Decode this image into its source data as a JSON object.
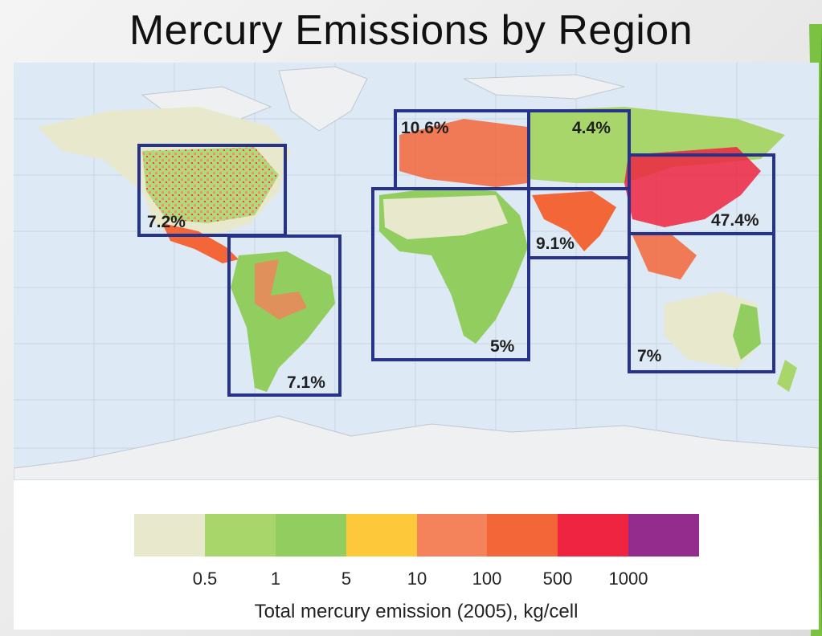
{
  "title": "Mercury Emissions by Region",
  "map": {
    "regions": [
      {
        "name": "north-america",
        "label": "7.2%"
      },
      {
        "name": "south-america",
        "label": "7.1%"
      },
      {
        "name": "europe",
        "label": "10.6%"
      },
      {
        "name": "russia-central-asia",
        "label": "4.4%"
      },
      {
        "name": "africa",
        "label": "5%"
      },
      {
        "name": "south-asia",
        "label": "9.1%"
      },
      {
        "name": "east-asia",
        "label": "47.4%"
      },
      {
        "name": "oceania-southeast-asia",
        "label": "7%"
      }
    ],
    "box_color": "#27338a",
    "ocean_color": "#dde9f5",
    "ice_color": "#eef0f2"
  },
  "legend": {
    "colors": [
      "#e8e8cc",
      "#a9d66a",
      "#92ce5f",
      "#fdc93a",
      "#f4825a",
      "#f26638",
      "#ee2440",
      "#932c8c"
    ],
    "ticks": [
      "0.5",
      "1",
      "5",
      "10",
      "100",
      "500",
      "1000"
    ],
    "caption": "Total mercury emission (2005), kg/cell"
  },
  "accent_color": "#7cc242"
}
